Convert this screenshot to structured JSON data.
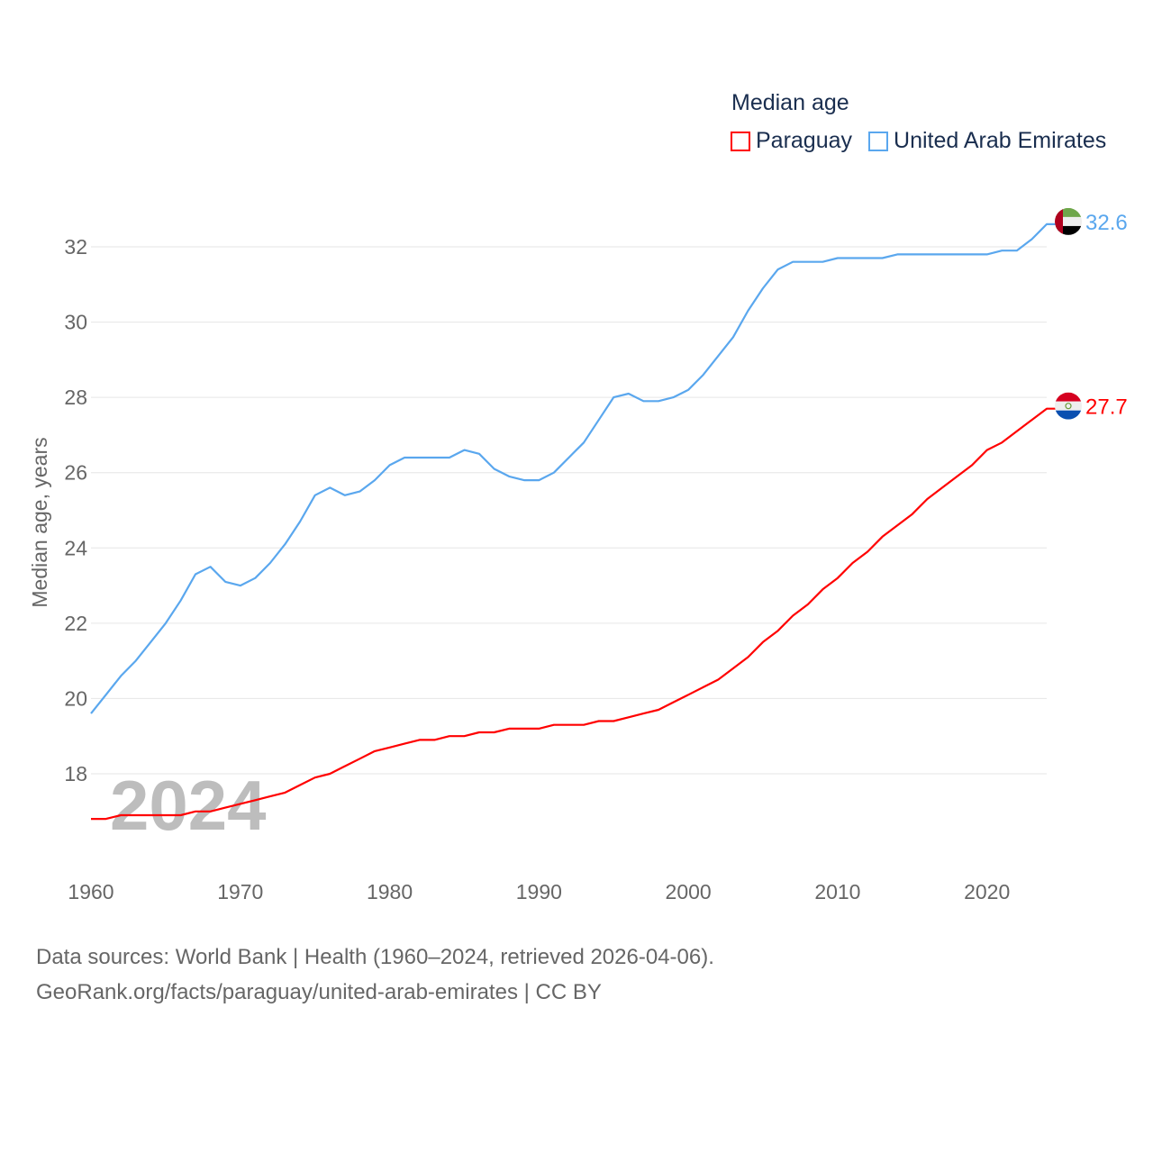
{
  "chart_data": {
    "type": "line",
    "title": "Median age",
    "xlabel": "",
    "ylabel": "Median age, years",
    "xlim": [
      1960,
      2024
    ],
    "ylim": [
      16.2,
      33
    ],
    "yticks": [
      18,
      20,
      22,
      24,
      26,
      28,
      30,
      32
    ],
    "xticks": [
      1960,
      1970,
      1980,
      1990,
      2000,
      2010,
      2020
    ],
    "grid": true,
    "legend_placement": "top-right",
    "year_watermark": "2024",
    "x": [
      1960,
      1961,
      1962,
      1963,
      1964,
      1965,
      1966,
      1967,
      1968,
      1969,
      1970,
      1971,
      1972,
      1973,
      1974,
      1975,
      1976,
      1977,
      1978,
      1979,
      1980,
      1981,
      1982,
      1983,
      1984,
      1985,
      1986,
      1987,
      1988,
      1989,
      1990,
      1991,
      1992,
      1993,
      1994,
      1995,
      1996,
      1997,
      1998,
      1999,
      2000,
      2001,
      2002,
      2003,
      2004,
      2005,
      2006,
      2007,
      2008,
      2009,
      2010,
      2011,
      2012,
      2013,
      2014,
      2015,
      2016,
      2017,
      2018,
      2019,
      2020,
      2021,
      2022,
      2023,
      2024
    ],
    "series": [
      {
        "name": "Paraguay",
        "color": "#ff0000",
        "end_label": "27.7",
        "values": [
          16.8,
          16.8,
          16.9,
          16.9,
          16.9,
          16.9,
          16.9,
          17.0,
          17.0,
          17.1,
          17.2,
          17.3,
          17.4,
          17.5,
          17.7,
          17.9,
          18.0,
          18.2,
          18.4,
          18.6,
          18.7,
          18.8,
          18.9,
          18.9,
          19.0,
          19.0,
          19.1,
          19.1,
          19.2,
          19.2,
          19.2,
          19.3,
          19.3,
          19.3,
          19.4,
          19.4,
          19.5,
          19.6,
          19.7,
          19.9,
          20.1,
          20.3,
          20.5,
          20.8,
          21.1,
          21.5,
          21.8,
          22.2,
          22.5,
          22.9,
          23.2,
          23.6,
          23.9,
          24.3,
          24.6,
          24.9,
          25.3,
          25.6,
          25.9,
          26.2,
          26.6,
          26.8,
          27.1,
          27.4,
          27.7
        ]
      },
      {
        "name": "United Arab Emirates",
        "color": "#5aa7ee",
        "end_label": "32.6",
        "values": [
          19.6,
          20.1,
          20.6,
          21.0,
          21.5,
          22.0,
          22.6,
          23.3,
          23.5,
          23.1,
          23.0,
          23.2,
          23.6,
          24.1,
          24.7,
          25.4,
          25.6,
          25.4,
          25.5,
          25.8,
          26.2,
          26.4,
          26.4,
          26.4,
          26.4,
          26.6,
          26.5,
          26.1,
          25.9,
          25.8,
          25.8,
          26.0,
          26.4,
          26.8,
          27.4,
          28.0,
          28.1,
          27.9,
          27.9,
          28.0,
          28.2,
          28.6,
          29.1,
          29.6,
          30.3,
          30.9,
          31.4,
          31.6,
          31.6,
          31.6,
          31.7,
          31.7,
          31.7,
          31.7,
          31.8,
          31.8,
          31.8,
          31.8,
          31.8,
          31.8,
          31.8,
          31.9,
          31.9,
          32.2,
          32.6
        ]
      }
    ]
  },
  "footer": {
    "line1": "Data sources: World Bank | Health (1960–2024, retrieved 2026-04-06).",
    "line2": "GeoRank.org/facts/paraguay/united-arab-emirates | CC BY"
  }
}
